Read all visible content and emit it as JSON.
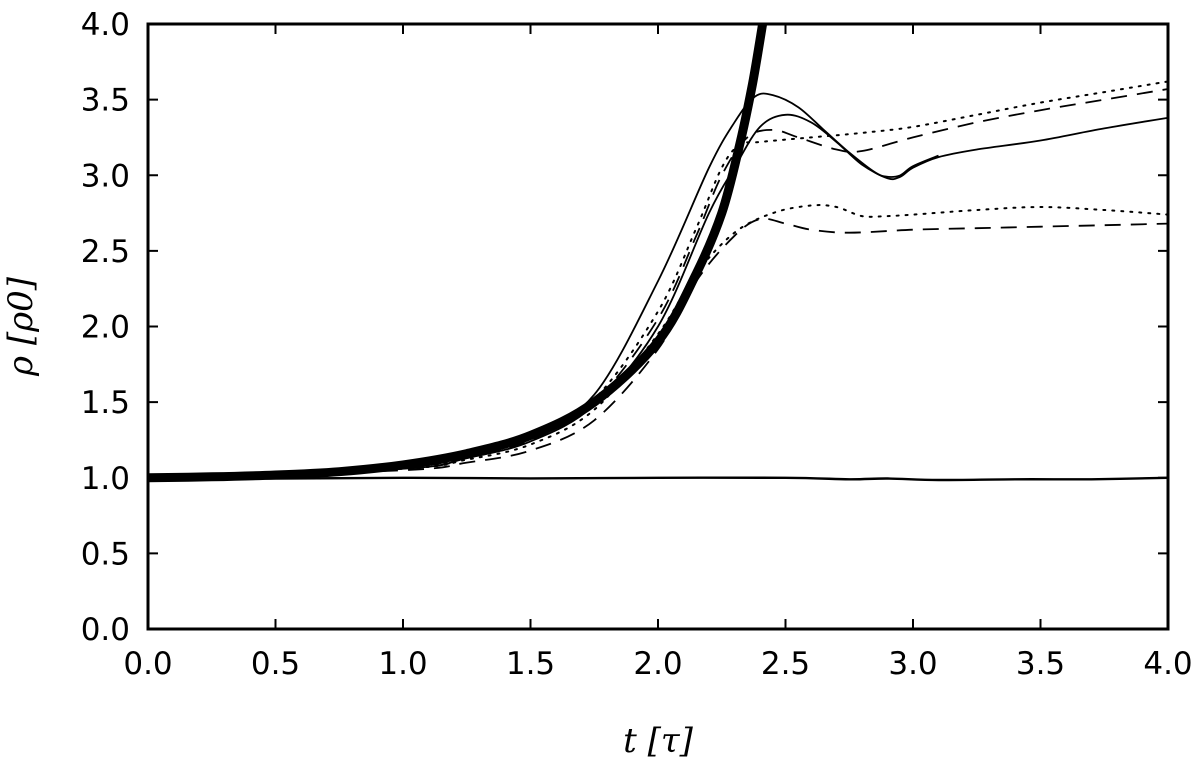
{
  "chart_data": {
    "type": "line",
    "title": "",
    "xlabel": "t [τ]",
    "ylabel": "ρ [ρ0]",
    "xlim": [
      0,
      4
    ],
    "ylim": [
      0,
      4
    ],
    "grid": false,
    "legend": "none",
    "x_ticks": [
      "0.0",
      "0.5",
      "1.0",
      "1.5",
      "2.0",
      "2.5",
      "3.0",
      "3.5",
      "4.0"
    ],
    "y_ticks": [
      "0.0",
      "0.5",
      "1.0",
      "1.5",
      "2.0",
      "2.5",
      "3.0",
      "3.5",
      "4.0"
    ],
    "series": [
      {
        "style": "thick",
        "points": [
          [
            0,
            1.0
          ],
          [
            0.25,
            1.006
          ],
          [
            0.5,
            1.018
          ],
          [
            0.75,
            1.04
          ],
          [
            1.0,
            1.085
          ],
          [
            1.25,
            1.16
          ],
          [
            1.5,
            1.28
          ],
          [
            1.75,
            1.5
          ],
          [
            2.0,
            1.9
          ],
          [
            2.15,
            2.35
          ],
          [
            2.25,
            2.75
          ],
          [
            2.32,
            3.2
          ],
          [
            2.37,
            3.6
          ],
          [
            2.41,
            4.0
          ]
        ]
      },
      {
        "style": "solid",
        "points": [
          [
            0,
            1.0
          ],
          [
            1.0,
            1.07
          ],
          [
            1.25,
            1.15
          ],
          [
            1.5,
            1.28
          ],
          [
            1.75,
            1.55
          ],
          [
            2.0,
            2.3
          ],
          [
            2.2,
            3.05
          ],
          [
            2.3,
            3.35
          ],
          [
            2.38,
            3.52
          ],
          [
            2.45,
            3.53
          ],
          [
            2.55,
            3.45
          ],
          [
            2.65,
            3.3
          ],
          [
            2.75,
            3.15
          ],
          [
            2.85,
            3.02
          ],
          [
            2.9,
            2.99
          ],
          [
            2.95,
            3.0
          ],
          [
            3.0,
            3.06
          ],
          [
            3.1,
            3.13
          ]
        ]
      },
      {
        "style": "solid",
        "points": [
          [
            0,
            1.0
          ],
          [
            1.0,
            1.06
          ],
          [
            1.25,
            1.13
          ],
          [
            1.5,
            1.24
          ],
          [
            1.75,
            1.48
          ],
          [
            2.0,
            2.0
          ],
          [
            2.2,
            2.75
          ],
          [
            2.3,
            3.05
          ],
          [
            2.4,
            3.32
          ],
          [
            2.5,
            3.4
          ],
          [
            2.6,
            3.35
          ],
          [
            2.7,
            3.22
          ],
          [
            2.8,
            3.07
          ],
          [
            2.9,
            2.98
          ],
          [
            2.95,
            2.99
          ],
          [
            3.0,
            3.05
          ],
          [
            3.1,
            3.12
          ],
          [
            3.25,
            3.17
          ],
          [
            3.5,
            3.23
          ],
          [
            3.75,
            3.31
          ],
          [
            4.0,
            3.38
          ]
        ]
      },
      {
        "style": "dotted",
        "points": [
          [
            0,
            1.0
          ],
          [
            1.0,
            1.065
          ],
          [
            1.25,
            1.14
          ],
          [
            1.5,
            1.27
          ],
          [
            1.75,
            1.52
          ],
          [
            2.0,
            2.1
          ],
          [
            2.15,
            2.65
          ],
          [
            2.25,
            3.05
          ],
          [
            2.32,
            3.2
          ],
          [
            2.4,
            3.22
          ],
          [
            2.6,
            3.25
          ],
          [
            2.8,
            3.28
          ],
          [
            3.0,
            3.32
          ],
          [
            3.25,
            3.4
          ],
          [
            3.5,
            3.48
          ],
          [
            3.75,
            3.55
          ],
          [
            4.0,
            3.62
          ]
        ]
      },
      {
        "style": "dashed",
        "points": [
          [
            0,
            1.0
          ],
          [
            1.0,
            1.06
          ],
          [
            1.25,
            1.13
          ],
          [
            1.5,
            1.25
          ],
          [
            1.75,
            1.5
          ],
          [
            2.0,
            2.05
          ],
          [
            2.15,
            2.6
          ],
          [
            2.25,
            3.0
          ],
          [
            2.35,
            3.25
          ],
          [
            2.45,
            3.3
          ],
          [
            2.55,
            3.25
          ],
          [
            2.7,
            3.17
          ],
          [
            2.8,
            3.16
          ],
          [
            3.0,
            3.25
          ],
          [
            3.25,
            3.35
          ],
          [
            3.5,
            3.43
          ],
          [
            3.75,
            3.5
          ],
          [
            4.0,
            3.57
          ]
        ]
      },
      {
        "style": "dotted",
        "points": [
          [
            0,
            1.0
          ],
          [
            1.0,
            1.06
          ],
          [
            1.25,
            1.12
          ],
          [
            1.5,
            1.22
          ],
          [
            1.75,
            1.45
          ],
          [
            2.0,
            1.95
          ],
          [
            2.15,
            2.35
          ],
          [
            2.3,
            2.62
          ],
          [
            2.45,
            2.75
          ],
          [
            2.6,
            2.8
          ],
          [
            2.7,
            2.79
          ],
          [
            2.8,
            2.73
          ],
          [
            2.9,
            2.73
          ],
          [
            3.0,
            2.74
          ],
          [
            3.25,
            2.77
          ],
          [
            3.5,
            2.79
          ],
          [
            3.75,
            2.77
          ],
          [
            4.0,
            2.74
          ]
        ]
      },
      {
        "style": "dashed",
        "points": [
          [
            0,
            1.0
          ],
          [
            1.0,
            1.05
          ],
          [
            1.25,
            1.1
          ],
          [
            1.5,
            1.18
          ],
          [
            1.75,
            1.38
          ],
          [
            2.0,
            1.85
          ],
          [
            2.15,
            2.3
          ],
          [
            2.3,
            2.6
          ],
          [
            2.4,
            2.71
          ],
          [
            2.5,
            2.68
          ],
          [
            2.6,
            2.64
          ],
          [
            2.75,
            2.62
          ],
          [
            3.0,
            2.64
          ],
          [
            3.25,
            2.65
          ],
          [
            3.5,
            2.66
          ],
          [
            3.75,
            2.67
          ],
          [
            4.0,
            2.68
          ]
        ]
      },
      {
        "style": "baseline",
        "points": [
          [
            0,
            1.0
          ],
          [
            0.5,
            0.995
          ],
          [
            1.0,
            1.0
          ],
          [
            1.5,
            0.996
          ],
          [
            2.0,
            1.0
          ],
          [
            2.5,
            1.0
          ],
          [
            2.75,
            0.99
          ],
          [
            2.9,
            0.995
          ],
          [
            3.1,
            0.985
          ],
          [
            3.4,
            0.99
          ],
          [
            3.7,
            0.99
          ],
          [
            4.0,
            1.0
          ]
        ]
      }
    ]
  }
}
